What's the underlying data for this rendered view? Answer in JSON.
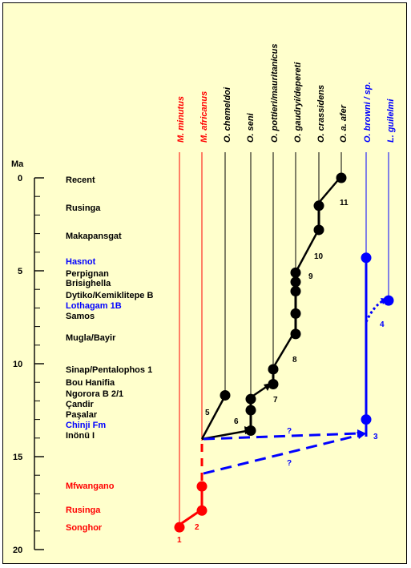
{
  "axis": {
    "unit": "Ma",
    "ticks": [
      "0",
      "5",
      "10",
      "15",
      "20"
    ]
  },
  "colors": {
    "red": "#ff0000",
    "blue": "#0000ff",
    "black": "#000000",
    "background": "#ffffcc"
  },
  "taxa": [
    {
      "label": "M. minutus",
      "color": "red"
    },
    {
      "label": "M. africanus",
      "color": "red"
    },
    {
      "label": "O. chemeldoi",
      "color": "black"
    },
    {
      "label": "O. seni",
      "color": "black"
    },
    {
      "label": "O. pottieri/mauritanicus",
      "color": "black"
    },
    {
      "label": "O. gaudryi/depereti",
      "color": "black"
    },
    {
      "label": "O. crassidens",
      "color": "black"
    },
    {
      "label": "O. a. afer",
      "color": "black"
    },
    {
      "label": "O. browni / sp.",
      "color": "blue"
    },
    {
      "label": "L. guilelmi",
      "color": "blue"
    }
  ],
  "sites": [
    {
      "label": "Recent",
      "age": 0.0,
      "color": "black"
    },
    {
      "label": "Rusinga",
      "age": 1.5,
      "color": "black"
    },
    {
      "label": "Makapansgat",
      "age": 3.0,
      "color": "black"
    },
    {
      "label": "Hasnot",
      "age": 4.4,
      "color": "blue"
    },
    {
      "label": "Perpignan",
      "age": 5.1,
      "color": "black"
    },
    {
      "label": "Brisighella",
      "age": 5.6,
      "color": "black"
    },
    {
      "label": "Dytiko/Kemiklitepe B",
      "age": 6.1,
      "color": "black"
    },
    {
      "label": "Lothagam 1B",
      "age": 6.7,
      "color": "blue"
    },
    {
      "label": "Samos",
      "age": 7.3,
      "color": "black"
    },
    {
      "label": "Mugla/Bayir",
      "age": 8.4,
      "color": "black"
    },
    {
      "label": "Sinap/Pentalophos 1",
      "age": 10.4,
      "color": "black"
    },
    {
      "label": "Bou Hanifia",
      "age": 11.0,
      "color": "black"
    },
    {
      "label": "Ngorora B 2/1",
      "age": 11.7,
      "color": "black"
    },
    {
      "label": "Çandir",
      "age": 12.3,
      "color": "black"
    },
    {
      "label": "Paşalar",
      "age": 12.9,
      "color": "black"
    },
    {
      "label": "Chinji Fm",
      "age": 13.5,
      "color": "blue"
    },
    {
      "label": "Inönü I",
      "age": 14.1,
      "color": "black"
    },
    {
      "label": "Mfwangano",
      "age": 16.6,
      "color": "red"
    },
    {
      "label": "Rusinga",
      "age": 17.9,
      "color": "red"
    },
    {
      "label": "Songhor",
      "age": 18.8,
      "color": "red"
    }
  ],
  "lineage_points": {
    "M. minutus": [
      18.8
    ],
    "M. africanus": [
      16.6,
      17.9
    ],
    "O. chemeldoi": [
      11.7
    ],
    "O. seni": [
      11.9,
      12.5,
      13.6
    ],
    "O. pottieri/mauritanicus": [
      10.3,
      11.1
    ],
    "O. gaudryi/depereti": [
      5.1,
      5.6,
      6.1,
      7.3,
      8.4
    ],
    "O. crassidens": [
      1.5,
      2.8
    ],
    "O. a. afer": [
      0.0
    ],
    "O. browni / sp.": [
      4.3,
      13.0
    ],
    "L. guilelmi": [
      6.6
    ]
  },
  "node_labels": [
    "1",
    "2",
    "3",
    "4",
    "5",
    "6",
    "7",
    "8",
    "9",
    "10",
    "11"
  ],
  "question_marks": [
    "?",
    "?"
  ]
}
